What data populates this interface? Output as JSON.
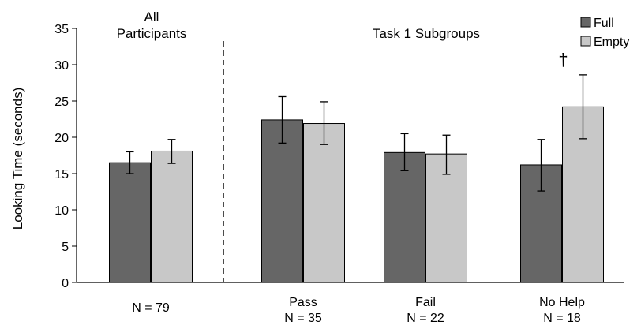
{
  "chart_data": {
    "type": "bar",
    "ylabel": "Looking Time (seconds)",
    "ylim": [
      0,
      35
    ],
    "yticks": [
      "0",
      "5",
      "10",
      "15",
      "20",
      "25",
      "30",
      "35"
    ],
    "legend": {
      "placement": "top-right",
      "entries": [
        {
          "name": "Full",
          "color": "#666666"
        },
        {
          "name": "Empty",
          "color": "#c8c8c8"
        }
      ]
    },
    "group_labels": [
      {
        "id": "all",
        "lines": [
          "All",
          "Participants"
        ]
      },
      {
        "id": "subgroups",
        "lines": [
          "Task 1 Subgroups"
        ]
      }
    ],
    "categories": [
      {
        "lines": [
          "N = 79"
        ]
      },
      {
        "lines": [
          "Pass",
          "N = 35"
        ]
      },
      {
        "lines": [
          "Fail",
          "N = 22"
        ]
      },
      {
        "lines": [
          "No Help",
          "N = 18"
        ]
      }
    ],
    "series": [
      {
        "name": "Full",
        "color": "#666666",
        "values": [
          16.5,
          22.4,
          17.9,
          16.2
        ],
        "err_low": [
          15.0,
          19.2,
          15.4,
          12.6
        ],
        "err_high": [
          18.0,
          25.6,
          20.5,
          19.7
        ]
      },
      {
        "name": "Empty",
        "color": "#c8c8c8",
        "values": [
          18.1,
          21.9,
          17.7,
          24.2
        ],
        "err_low": [
          16.4,
          19.0,
          14.9,
          19.8
        ],
        "err_high": [
          19.7,
          24.9,
          20.3,
          28.6
        ]
      }
    ],
    "annotations": [
      {
        "text": "†",
        "category_index": 3,
        "series_index": 1
      }
    ],
    "grid": false
  }
}
